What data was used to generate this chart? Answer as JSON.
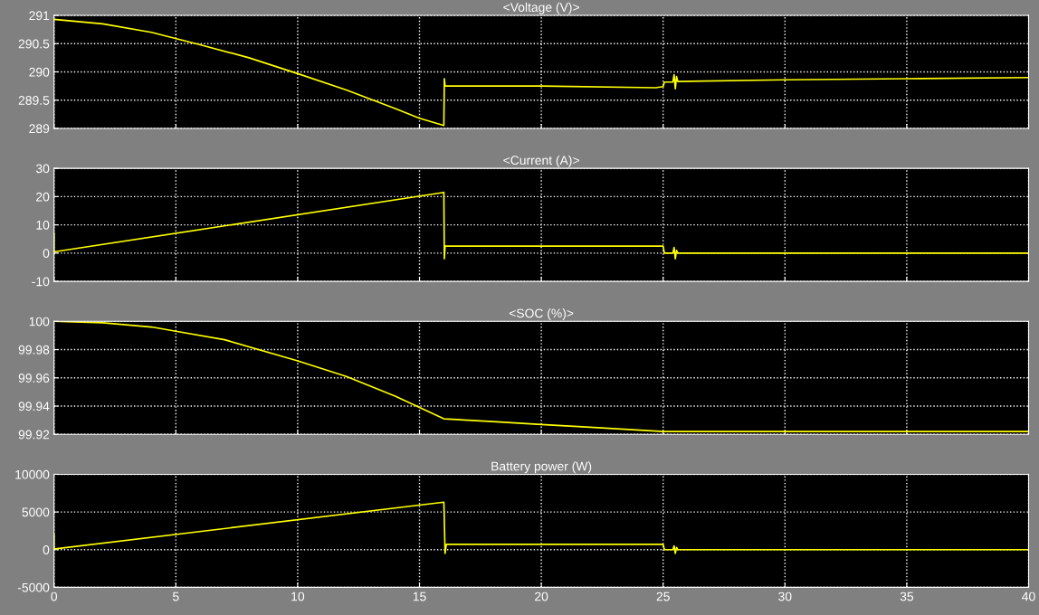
{
  "chart_data": [
    {
      "type": "line",
      "title": "<Voltage (V)>",
      "xlim": [
        0,
        40
      ],
      "xticks": [
        0,
        5,
        10,
        15,
        20,
        25,
        30,
        35,
        40
      ],
      "ylim": [
        289,
        291
      ],
      "yticks": [
        289,
        289.5,
        290,
        290.5,
        291
      ],
      "grid": true,
      "tick_labels": "y",
      "line_style": "solid",
      "series": [
        {
          "color": "#ffff00",
          "x": [
            0,
            2,
            4,
            6,
            8,
            10,
            12,
            14,
            15,
            16,
            16.02,
            16.05,
            16.2,
            20,
            24.7,
            25,
            25.05,
            25.4,
            25.45,
            25.5,
            25.55,
            25.6,
            30,
            35,
            40
          ],
          "values": [
            290.93,
            290.85,
            290.7,
            290.48,
            290.25,
            289.97,
            289.68,
            289.35,
            289.18,
            289.05,
            289.88,
            289.75,
            289.75,
            289.75,
            289.72,
            289.74,
            289.82,
            289.82,
            289.95,
            289.7,
            289.92,
            289.83,
            289.86,
            289.88,
            289.9
          ]
        }
      ]
    },
    {
      "type": "line",
      "title": "<Current (A)>",
      "xlim": [
        0,
        40
      ],
      "xticks": [
        0,
        5,
        10,
        15,
        20,
        25,
        30,
        35,
        40
      ],
      "ylim": [
        -10,
        30
      ],
      "yticks": [
        -10,
        0,
        10,
        20,
        30
      ],
      "grid": true,
      "tick_labels": "y",
      "line_style": "solid",
      "series": [
        {
          "color": "#ffff00",
          "x": [
            0,
            0,
            0.05,
            16,
            16.02,
            16.05,
            16.1,
            25,
            25.05,
            25.4,
            25.45,
            25.5,
            25.55,
            25.6,
            40
          ],
          "values": [
            7,
            0.5,
            0.5,
            21.5,
            -2,
            2.5,
            2.5,
            2.5,
            0,
            0,
            2,
            -2,
            1,
            0,
            0
          ]
        }
      ]
    },
    {
      "type": "line",
      "title": "<SOC (%)>",
      "xlim": [
        0,
        40
      ],
      "xticks": [
        0,
        5,
        10,
        15,
        20,
        25,
        30,
        35,
        40
      ],
      "ylim": [
        99.92,
        100
      ],
      "yticks": [
        99.92,
        99.94,
        99.96,
        99.98,
        100
      ],
      "grid": true,
      "tick_labels": "y",
      "line_style": "solid",
      "series": [
        {
          "color": "#ffff00",
          "x": [
            0,
            2,
            4,
            5,
            7,
            10,
            12,
            14,
            15,
            16,
            18,
            20,
            22,
            25,
            40
          ],
          "values": [
            100,
            99.999,
            99.996,
            99.993,
            99.987,
            99.972,
            99.961,
            99.947,
            99.939,
            99.931,
            99.929,
            99.927,
            99.925,
            99.922,
            99.922
          ]
        }
      ]
    },
    {
      "type": "line",
      "title": "Battery power (W)",
      "xlim": [
        0,
        40
      ],
      "xticks": [
        0,
        5,
        10,
        15,
        20,
        25,
        30,
        35,
        40
      ],
      "ylim": [
        -5000,
        10000
      ],
      "yticks": [
        -5000,
        0,
        5000,
        10000
      ],
      "grid": true,
      "line_style": "solid",
      "series": [
        {
          "color": "#ffff00",
          "x": [
            0,
            0,
            0.05,
            16,
            16.02,
            16.05,
            16.1,
            25,
            25.05,
            25.4,
            25.45,
            25.5,
            25.55,
            25.6,
            40
          ],
          "values": [
            2000,
            100,
            100,
            6300,
            3800,
            -500,
            700,
            700,
            0,
            0,
            500,
            -500,
            300,
            0,
            0
          ]
        }
      ]
    }
  ]
}
